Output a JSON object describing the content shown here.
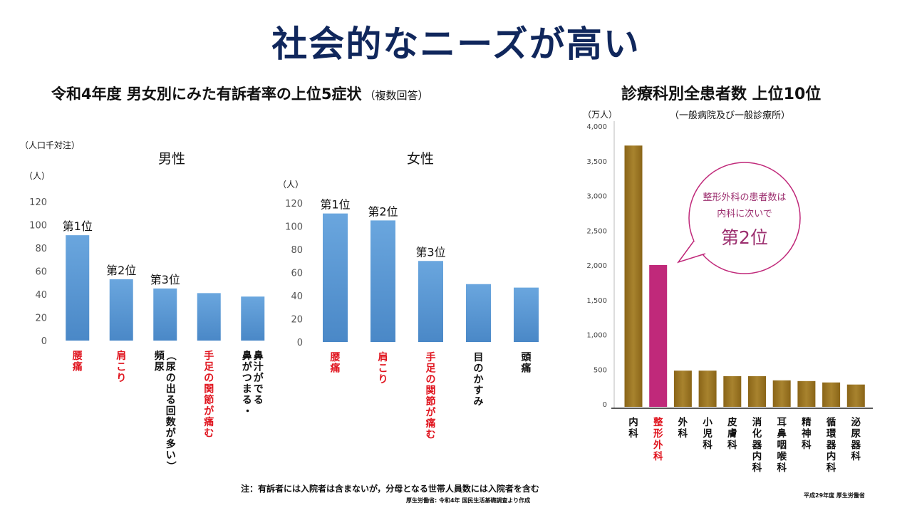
{
  "title": "社会的なニーズが高い",
  "left_section": {
    "heading": "令和4年度  男女別にみた有訴者率の上位5症状",
    "heading_note": "（複数回答）",
    "unit_label_top": "（人口千対注）",
    "unit_label_people": "（人）"
  },
  "right_section": {
    "heading": "診療科別全患者数  上位10位",
    "subheading": "（一般病院及び一般診療所）",
    "unit_label": "（万人）",
    "callout_line1": "整形外科の患者数は",
    "callout_line2": "内科に次いで",
    "callout_rank": "第2位"
  },
  "footnote": "注：有訴者には入院者は含まないが，分母となる世帯人員数には入院者を含む",
  "source_left": "厚生労働省: 令和4年  国民生活基礎調査より作成",
  "source_right": "平成29年度 厚生労働省",
  "colors": {
    "title": "#10275c",
    "bar_blue": "#5b9bd5",
    "bar_brown": "#9b7422",
    "bar_magenta": "#c0297a",
    "label_red": "#e0141e",
    "callout_border": "#c0297a"
  },
  "chart_data": [
    {
      "type": "bar",
      "title": "男性",
      "ylabel": "（人）",
      "ylim": [
        0,
        120
      ],
      "yticks": [
        0,
        20,
        40,
        60,
        80,
        100,
        120
      ],
      "categories": [
        "腰痛",
        "肩こり",
        "頻尿（尿の出る回数が多い）",
        "手足の関節が痛む",
        "鼻がつまる・鼻汁がでる"
      ],
      "values": [
        91,
        53,
        45,
        41,
        38
      ],
      "rank_labels": [
        "第1位",
        "第2位",
        "第3位",
        "",
        ""
      ],
      "highlight": [
        true,
        true,
        false,
        true,
        false
      ]
    },
    {
      "type": "bar",
      "title": "女性",
      "ylabel": "（人）",
      "ylim": [
        0,
        120
      ],
      "yticks": [
        0,
        20,
        40,
        60,
        80,
        100,
        120
      ],
      "categories": [
        "腰痛",
        "肩こり",
        "手足の関節が痛む",
        "目のかすみ",
        "頭痛"
      ],
      "values": [
        111,
        105,
        70,
        50,
        47
      ],
      "rank_labels": [
        "第1位",
        "第2位",
        "第3位",
        "",
        ""
      ],
      "highlight": [
        true,
        true,
        true,
        false,
        false
      ]
    },
    {
      "type": "bar",
      "title": "診療科別全患者数  上位10位",
      "ylabel": "（万人）",
      "ylim": [
        0,
        4000
      ],
      "yticks": [
        0,
        500,
        1000,
        1500,
        2000,
        2500,
        3000,
        3500,
        4000
      ],
      "ytick_labels": [
        "0",
        "500",
        "1,000",
        "1,500",
        "2,000",
        "2,500",
        "3,000",
        "3,500",
        "4,000"
      ],
      "categories": [
        "内科",
        "整形外科",
        "外科",
        "小児科",
        "皮膚科",
        "消化器内科",
        "耳鼻咽喉科",
        "精神科",
        "循環器内科",
        "泌尿器科"
      ],
      "values": [
        3720,
        2000,
        480,
        480,
        400,
        400,
        340,
        330,
        310,
        280
      ],
      "highlight": [
        false,
        true,
        false,
        false,
        false,
        false,
        false,
        false,
        false,
        false
      ]
    }
  ]
}
